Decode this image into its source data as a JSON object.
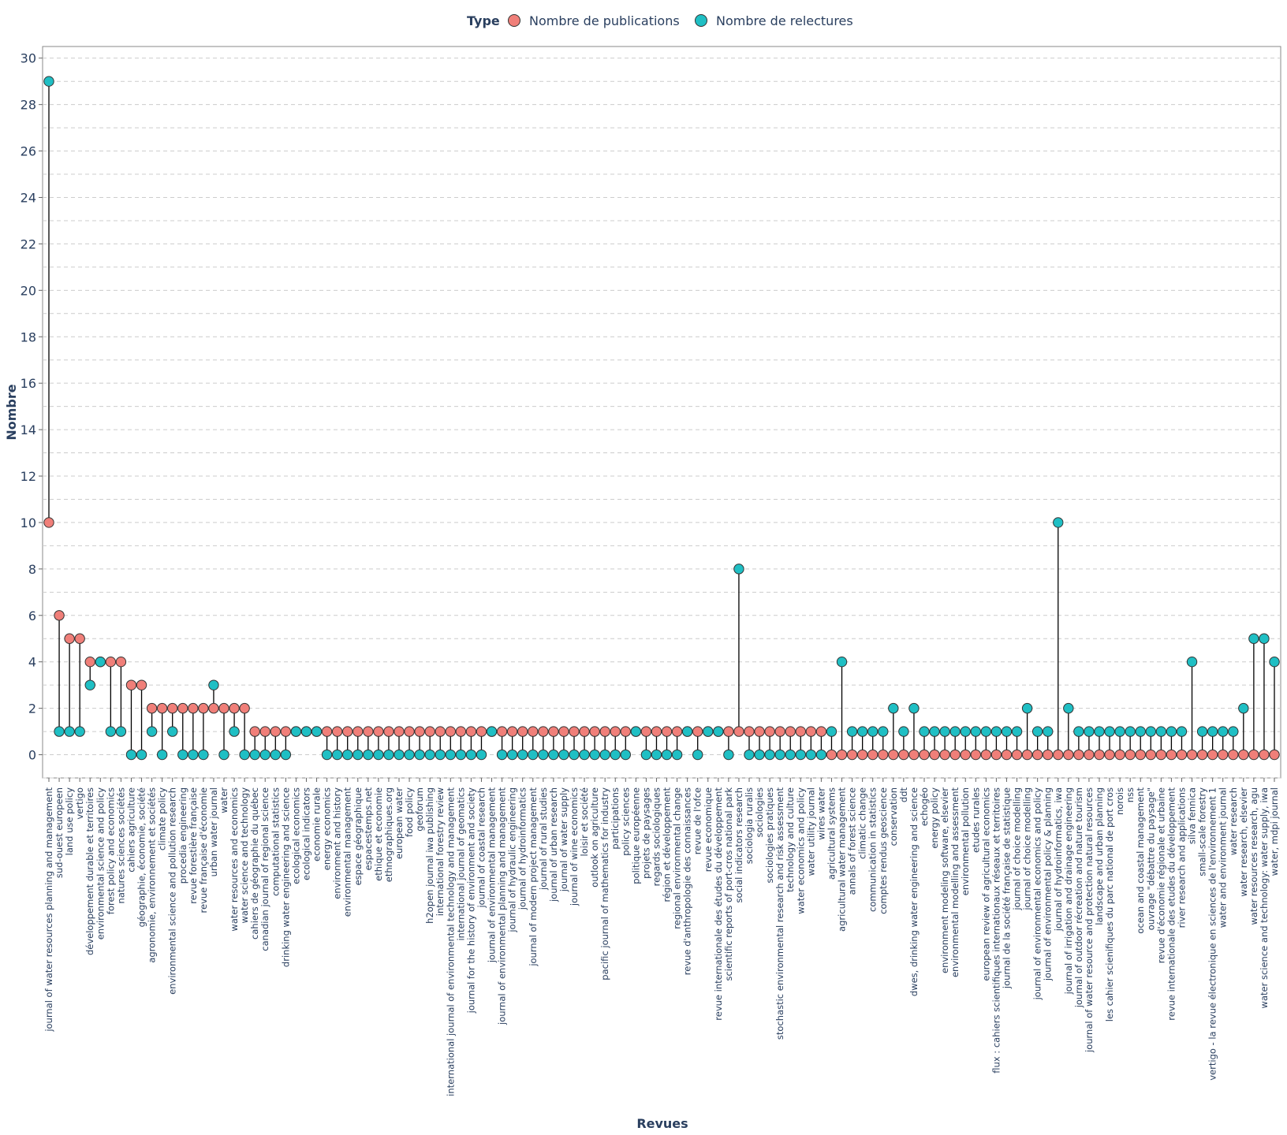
{
  "chart_data": {
    "type": "lollipop",
    "xlabel": "Revues",
    "ylabel": "Nombre",
    "ylim": [
      -1,
      30.5
    ],
    "yticks": [
      0,
      2,
      4,
      6,
      8,
      10,
      12,
      14,
      16,
      18,
      20,
      22,
      24,
      26,
      28,
      30
    ],
    "grid": true,
    "legend": {
      "title": "Type",
      "placement": "top-center"
    },
    "colors": {
      "publications": "#f07f79",
      "relectures": "#1fbfc4",
      "stem": "#000000",
      "text": "#2a3f5f",
      "grid": "#cccccc"
    },
    "series": [
      {
        "key": "publications",
        "name": "Nombre de publications"
      },
      {
        "key": "relectures",
        "name": "Nombre de relectures"
      }
    ],
    "items": [
      {
        "name": "journal of water resources planning and management",
        "pub": 10,
        "rel": 29
      },
      {
        "name": "sud-ouest europeen",
        "pub": 6,
        "rel": 1
      },
      {
        "name": "land use policy",
        "pub": 5,
        "rel": 1
      },
      {
        "name": "vertigo",
        "pub": 5,
        "rel": 1
      },
      {
        "name": "développement durable et territoires",
        "pub": 4,
        "rel": 3
      },
      {
        "name": "environmental science and policy",
        "pub": 4,
        "rel": 4
      },
      {
        "name": "forest policy and economics",
        "pub": 4,
        "rel": 1
      },
      {
        "name": "natures sciences sociétés",
        "pub": 4,
        "rel": 1
      },
      {
        "name": "cahiers agriculture",
        "pub": 3,
        "rel": 0
      },
      {
        "name": "géographie, économie, société",
        "pub": 3,
        "rel": 0
      },
      {
        "name": "agronomie, environnement et sociétés",
        "pub": 2,
        "rel": 1
      },
      {
        "name": "climate policy",
        "pub": 2,
        "rel": 0
      },
      {
        "name": "environmental science and pollution research",
        "pub": 2,
        "rel": 1
      },
      {
        "name": "procedia engineering",
        "pub": 2,
        "rel": 0
      },
      {
        "name": "revue forestière française",
        "pub": 2,
        "rel": 0
      },
      {
        "name": "revue française d'économie",
        "pub": 2,
        "rel": 0
      },
      {
        "name": "urban water journal",
        "pub": 2,
        "rel": 3
      },
      {
        "name": "water",
        "pub": 2,
        "rel": 0
      },
      {
        "name": "water resources and economics",
        "pub": 2,
        "rel": 1
      },
      {
        "name": "water science and technology",
        "pub": 2,
        "rel": 0
      },
      {
        "name": "cahiers de géographie du québec",
        "pub": 1,
        "rel": 0
      },
      {
        "name": "canadian journal of regional science",
        "pub": 1,
        "rel": 0
      },
      {
        "name": "computational statistics",
        "pub": 1,
        "rel": 0
      },
      {
        "name": "drinking water engineering and science",
        "pub": 1,
        "rel": 0
      },
      {
        "name": "ecological economics",
        "pub": 1,
        "rel": 1
      },
      {
        "name": "ecological indicators",
        "pub": 1,
        "rel": 1
      },
      {
        "name": "economie rurale",
        "pub": 1,
        "rel": 1
      },
      {
        "name": "energy economics",
        "pub": 1,
        "rel": 0
      },
      {
        "name": "environment and history",
        "pub": 1,
        "rel": 0
      },
      {
        "name": "environmental management",
        "pub": 1,
        "rel": 0
      },
      {
        "name": "espace géographique",
        "pub": 1,
        "rel": 0
      },
      {
        "name": "espacestemps.net",
        "pub": 1,
        "rel": 0
      },
      {
        "name": "ethique et economie",
        "pub": 1,
        "rel": 0
      },
      {
        "name": "ethnographiques.org",
        "pub": 1,
        "rel": 0
      },
      {
        "name": "european water",
        "pub": 1,
        "rel": 0
      },
      {
        "name": "food policy",
        "pub": 1,
        "rel": 0
      },
      {
        "name": "geoforum",
        "pub": 1,
        "rel": 0
      },
      {
        "name": "h2open journal iwa publishing",
        "pub": 1,
        "rel": 0
      },
      {
        "name": "international forestry review",
        "pub": 1,
        "rel": 0
      },
      {
        "name": "international journal of environmental technology and management",
        "pub": 1,
        "rel": 0
      },
      {
        "name": "international journal of geomatics",
        "pub": 1,
        "rel": 0
      },
      {
        "name": "journal for the history of environment and society",
        "pub": 1,
        "rel": 0
      },
      {
        "name": "journal of coastal research",
        "pub": 1,
        "rel": 0
      },
      {
        "name": "journal of environmental management",
        "pub": 1,
        "rel": 1
      },
      {
        "name": "journal of environmental planning and management",
        "pub": 1,
        "rel": 0
      },
      {
        "name": "journal of hydraulic engineering",
        "pub": 1,
        "rel": 0
      },
      {
        "name": "journal of hydroinformatics",
        "pub": 1,
        "rel": 0
      },
      {
        "name": "journal of modern project management",
        "pub": 1,
        "rel": 0
      },
      {
        "name": "journal of rural studies",
        "pub": 1,
        "rel": 0
      },
      {
        "name": "journal of urban research",
        "pub": 1,
        "rel": 0
      },
      {
        "name": "journal of water supply",
        "pub": 1,
        "rel": 0
      },
      {
        "name": "journal of wine economics",
        "pub": 1,
        "rel": 0
      },
      {
        "name": "loisir et société",
        "pub": 1,
        "rel": 0
      },
      {
        "name": "outlook on agriculture",
        "pub": 1,
        "rel": 0
      },
      {
        "name": "pacific journal of mathematics for industry",
        "pub": 1,
        "rel": 0
      },
      {
        "name": "participations",
        "pub": 1,
        "rel": 0
      },
      {
        "name": "policy sciences",
        "pub": 1,
        "rel": 0
      },
      {
        "name": "politique européenne",
        "pub": 1,
        "rel": 1
      },
      {
        "name": "projets de paysages",
        "pub": 1,
        "rel": 0
      },
      {
        "name": "regards sociologiques",
        "pub": 1,
        "rel": 0
      },
      {
        "name": "région et développement",
        "pub": 1,
        "rel": 0
      },
      {
        "name": "regional environmental change",
        "pub": 1,
        "rel": 0
      },
      {
        "name": "revue d'anthropologie des connaissances",
        "pub": 1,
        "rel": 1
      },
      {
        "name": "revue de l'ofce",
        "pub": 1,
        "rel": 0
      },
      {
        "name": "revue economique",
        "pub": 1,
        "rel": 1
      },
      {
        "name": "revue internationale des études du développement",
        "pub": 1,
        "rel": 1
      },
      {
        "name": "scientific reports of port-cros national park",
        "pub": 1,
        "rel": 0
      },
      {
        "name": "social indicators research",
        "pub": 1,
        "rel": 8
      },
      {
        "name": "sociologia ruralis",
        "pub": 1,
        "rel": 0
      },
      {
        "name": "sociologies",
        "pub": 1,
        "rel": 0
      },
      {
        "name": "sociologies pratiques",
        "pub": 1,
        "rel": 0
      },
      {
        "name": "stochastic environmental research and risk assessment",
        "pub": 1,
        "rel": 0
      },
      {
        "name": "technology and culture",
        "pub": 1,
        "rel": 0
      },
      {
        "name": "water economics and policy",
        "pub": 1,
        "rel": 0
      },
      {
        "name": "water utility journal",
        "pub": 1,
        "rel": 0
      },
      {
        "name": "wires water",
        "pub": 1,
        "rel": 0
      },
      {
        "name": "agricultural systems",
        "pub": 0,
        "rel": 1
      },
      {
        "name": "agricultural water management",
        "pub": 0,
        "rel": 4
      },
      {
        "name": "annals of forest science",
        "pub": 0,
        "rel": 1
      },
      {
        "name": "climatic change",
        "pub": 0,
        "rel": 1
      },
      {
        "name": "communication in statistics",
        "pub": 0,
        "rel": 1
      },
      {
        "name": "comptes rendus geoscience",
        "pub": 0,
        "rel": 1
      },
      {
        "name": "conservation",
        "pub": 0,
        "rel": 2
      },
      {
        "name": "ddt",
        "pub": 0,
        "rel": 1
      },
      {
        "name": "dwes, drinking water engineering and science",
        "pub": 0,
        "rel": 2
      },
      {
        "name": "echogéo",
        "pub": 0,
        "rel": 1
      },
      {
        "name": "energy policy",
        "pub": 0,
        "rel": 1
      },
      {
        "name": "environment modeling software, elsevier",
        "pub": 0,
        "rel": 1
      },
      {
        "name": "environmental modelling and assessment",
        "pub": 0,
        "rel": 1
      },
      {
        "name": "environmental pollution",
        "pub": 0,
        "rel": 1
      },
      {
        "name": "etudes rurales",
        "pub": 0,
        "rel": 1
      },
      {
        "name": "european review of agricultural economics",
        "pub": 0,
        "rel": 1
      },
      {
        "name": "flux : cahiers scientifiques internationaux réseaux et territoires",
        "pub": 0,
        "rel": 1
      },
      {
        "name": "journal de la société française de statistique",
        "pub": 0,
        "rel": 1
      },
      {
        "name": "journal of choice modelling",
        "pub": 0,
        "rel": 1
      },
      {
        "name": "journal of choice modelling",
        "pub": 0,
        "rel": 2
      },
      {
        "name": "journal of environmental economics and policy",
        "pub": 0,
        "rel": 1
      },
      {
        "name": "journal of environmental policy & planning",
        "pub": 0,
        "rel": 1
      },
      {
        "name": "journal of hydroinformatics, iwa",
        "pub": 0,
        "rel": 10
      },
      {
        "name": "journal of irrigation and drainage engineering",
        "pub": 0,
        "rel": 2
      },
      {
        "name": "journal of outdoor récreation and nature tourism",
        "pub": 0,
        "rel": 1
      },
      {
        "name": "journal of water resource and protection natural resources",
        "pub": 0,
        "rel": 1
      },
      {
        "name": "landscape and urban planning",
        "pub": 0,
        "rel": 1
      },
      {
        "name": "les cahier scienifiques du parc national de port cros",
        "pub": 0,
        "rel": 1
      },
      {
        "name": "norois",
        "pub": 0,
        "rel": 1
      },
      {
        "name": "nss",
        "pub": 0,
        "rel": 1
      },
      {
        "name": "ocean and coastal management",
        "pub": 0,
        "rel": 1
      },
      {
        "name": "ouvrage \"débattre du paysage\"",
        "pub": 0,
        "rel": 1
      },
      {
        "name": "revue d'économie régionale et urbaine",
        "pub": 0,
        "rel": 1
      },
      {
        "name": "revue internationale des etudes du développement",
        "pub": 0,
        "rel": 1
      },
      {
        "name": "river research and applications",
        "pub": 0,
        "rel": 1
      },
      {
        "name": "silva fennica",
        "pub": 0,
        "rel": 4
      },
      {
        "name": "small-scale forestry",
        "pub": 0,
        "rel": 1
      },
      {
        "name": "vertigo - la revue électronique en sciences de l'environnement 1",
        "pub": 0,
        "rel": 1
      },
      {
        "name": "water and environment journal",
        "pub": 0,
        "rel": 1
      },
      {
        "name": "water research",
        "pub": 0,
        "rel": 1
      },
      {
        "name": "water research, elsevier",
        "pub": 0,
        "rel": 2
      },
      {
        "name": "water resources research, agu",
        "pub": 0,
        "rel": 5
      },
      {
        "name": "water science and technology: water supply, iwa",
        "pub": 0,
        "rel": 5
      },
      {
        "name": "water, mdpi journal",
        "pub": 0,
        "rel": 4
      }
    ]
  }
}
